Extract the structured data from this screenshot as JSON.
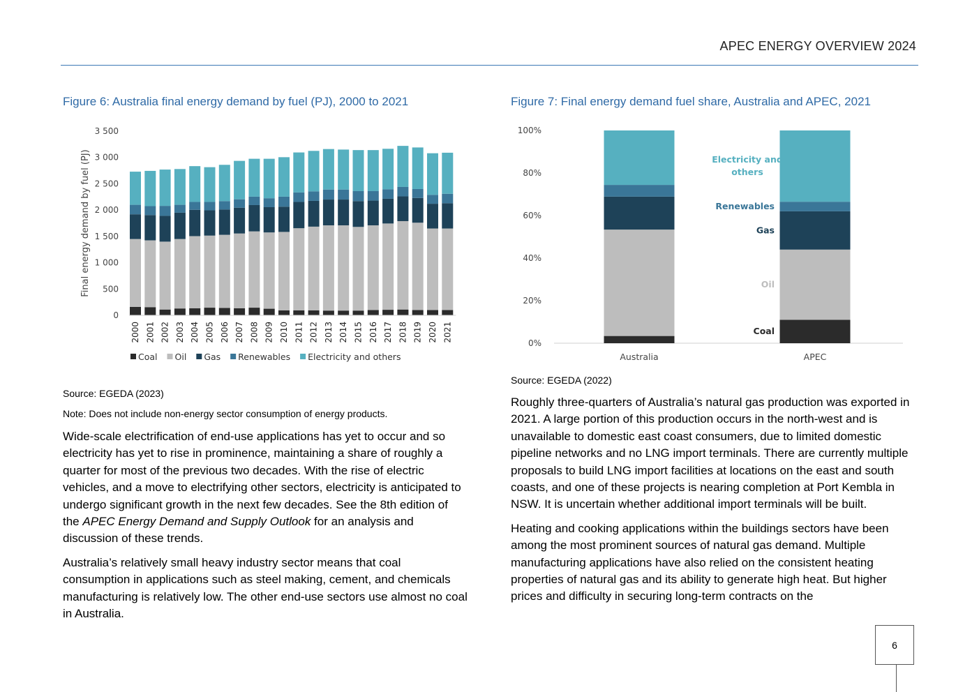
{
  "header": {
    "title": "APEC ENERGY OVERVIEW 2024"
  },
  "figure6": {
    "title": "Figure 6: Australia final energy demand by fuel (PJ), 2000 to 2021",
    "source": "Source: EGEDA (2023)",
    "note": "Note: Does not include non-energy sector consumption of energy products."
  },
  "figure7": {
    "title": "Figure 7: Final energy demand fuel share, Australia and APEC, 2021",
    "source": "Source: EGEDA (2022)"
  },
  "left_text": {
    "p1_a": "Wide-scale electrification of end-use applications has yet to occur and so electricity has yet to rise in prominence, maintaining a share of roughly a quarter for most of the previous two decades. With the rise of electric vehicles, and a move to electrifying other sectors, electricity is anticipated to undergo significant growth in the next few decades. See the 8th edition of the ",
    "p1_em": "APEC Energy Demand and Supply Outlook",
    "p1_b": " for an analysis and discussion of these trends.",
    "p2": "Australia’s relatively small heavy industry sector means that coal consumption in applications such as steel making, cement, and chemicals manufacturing is relatively low. The other end-use sectors use almost no coal in Australia."
  },
  "right_text": {
    "p1": "Roughly three-quarters of Australia’s natural gas production was exported in 2021. A large portion of this production occurs in the north-west and is unavailable to domestic east coast consumers, due to limited domestic pipeline networks and no LNG import terminals. There are currently multiple proposals to build LNG import facilities at locations on the east and south coasts, and one of these projects is nearing completion at Port Kembla in NSW. It is uncertain whether additional import terminals will be built.",
    "p2": "Heating and cooking applications within the buildings sectors have been among the most prominent sources of natural gas demand. Multiple manufacturing applications have also relied on the consistent heating properties of natural gas and its ability to generate high heat. But higher prices and difficulty in securing long-term contracts on the"
  },
  "page_number": "6",
  "chart_data": [
    {
      "type": "bar",
      "stacked": true,
      "ylabel": "Final energy demand  by fuel (PJ)",
      "ylim": [
        0,
        3500
      ],
      "yticks": [
        0,
        500,
        1000,
        1500,
        2000,
        2500,
        3000,
        3500
      ],
      "ytick_labels": [
        "0",
        "500",
        "1 000",
        "1 500",
        "2 000",
        "2 500",
        "3 000",
        "3 500"
      ],
      "categories": [
        "2000",
        "2001",
        "2002",
        "2003",
        "2004",
        "2005",
        "2006",
        "2007",
        "2008",
        "2009",
        "2010",
        "2011",
        "2012",
        "2013",
        "2014",
        "2015",
        "2016",
        "2017",
        "2018",
        "2019",
        "2020",
        "2021"
      ],
      "legend_position": "bottom",
      "series": [
        {
          "name": "Coal",
          "color": "#2b2b2b",
          "values": [
            160,
            155,
            110,
            130,
            135,
            145,
            140,
            135,
            145,
            125,
            95,
            95,
            95,
            90,
            90,
            90,
            100,
            105,
            110,
            100,
            100,
            100
          ]
        },
        {
          "name": "Oil",
          "color": "#bdbdbd",
          "values": [
            1290,
            1270,
            1290,
            1320,
            1370,
            1370,
            1390,
            1420,
            1450,
            1450,
            1490,
            1560,
            1590,
            1620,
            1620,
            1590,
            1610,
            1640,
            1680,
            1660,
            1550,
            1550
          ]
        },
        {
          "name": "Gas",
          "color": "#1e4258",
          "values": [
            470,
            480,
            490,
            500,
            500,
            480,
            480,
            490,
            500,
            480,
            480,
            500,
            490,
            490,
            490,
            490,
            470,
            470,
            470,
            470,
            470,
            480
          ]
        },
        {
          "name": "Renewables",
          "color": "#3a7698",
          "values": [
            180,
            170,
            190,
            150,
            150,
            160,
            160,
            160,
            160,
            170,
            190,
            180,
            180,
            190,
            190,
            190,
            180,
            180,
            180,
            170,
            170,
            180
          ]
        },
        {
          "name": "Electricity and others",
          "color": "#56b0c0",
          "values": [
            630,
            670,
            690,
            680,
            680,
            660,
            690,
            730,
            720,
            750,
            750,
            760,
            770,
            770,
            760,
            780,
            780,
            770,
            780,
            790,
            790,
            780
          ]
        }
      ]
    },
    {
      "type": "bar",
      "stacked": true,
      "percent": true,
      "ylim": [
        0,
        100
      ],
      "yticks": [
        0,
        20,
        40,
        60,
        80,
        100
      ],
      "ytick_labels": [
        "0%",
        "20%",
        "40%",
        "60%",
        "80%",
        "100%"
      ],
      "categories": [
        "Australia",
        "APEC"
      ],
      "series": [
        {
          "name": "Coal",
          "color": "#2b2b2b",
          "values": [
            3.4,
            11.0
          ]
        },
        {
          "name": "Oil",
          "color": "#bdbdbd",
          "values": [
            50.0,
            33.0
          ]
        },
        {
          "name": "Gas",
          "color": "#1e4258",
          "values": [
            15.5,
            18.0
          ]
        },
        {
          "name": "Renewables",
          "color": "#3a7698",
          "values": [
            5.5,
            4.5
          ]
        },
        {
          "name": "Electricity and others",
          "color": "#56b0c0",
          "values": [
            25.6,
            33.5
          ]
        }
      ],
      "series_labels": [
        {
          "series": "Electricity and others",
          "text": [
            "Electricity and",
            "others"
          ],
          "color": "#56b0c0"
        },
        {
          "series": "Renewables",
          "text": [
            "Renewables"
          ],
          "color": "#3a7698"
        },
        {
          "series": "Gas",
          "text": [
            "Gas"
          ],
          "color": "#1e4258"
        },
        {
          "series": "Oil",
          "text": [
            "Oil"
          ],
          "color": "#bdbdbd"
        },
        {
          "series": "Coal",
          "text": [
            "Coal"
          ],
          "color": "#2b2b2b"
        }
      ]
    }
  ]
}
